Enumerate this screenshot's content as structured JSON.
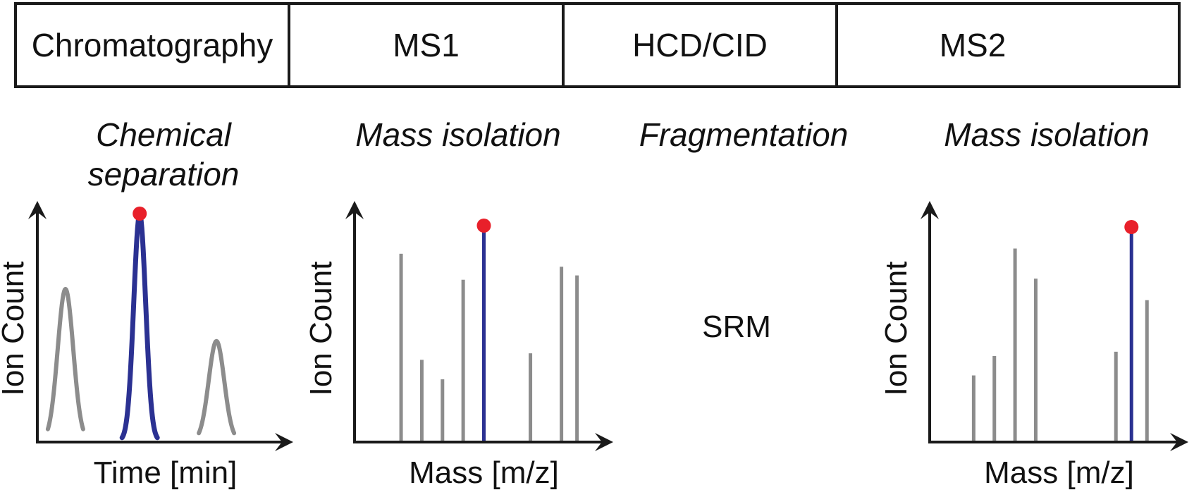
{
  "stages": [
    {
      "label": "Chromatography",
      "subtitle": [
        "Chemical",
        "separation"
      ]
    },
    {
      "label": "MS1",
      "subtitle": [
        "Mass isolation"
      ]
    },
    {
      "label": "HCD/CID",
      "subtitle": [
        "Fragmentation"
      ]
    },
    {
      "label": "MS2",
      "subtitle": [
        "Mass isolation"
      ]
    }
  ],
  "center_label": "SRM",
  "colors": {
    "selected": "#2b3192",
    "other": "#8c8c8c",
    "marker": "#e8202a",
    "axis": "#1a1a1a"
  },
  "chart_data": [
    {
      "type": "line",
      "xlabel": "Time [min]",
      "ylabel": "Ion Count",
      "series": [
        {
          "peak_x": 0.11,
          "height": 0.67,
          "selected": false
        },
        {
          "peak_x": 0.4,
          "height": 1.0,
          "selected": true
        },
        {
          "peak_x": 0.7,
          "height": 0.44,
          "selected": false
        }
      ]
    },
    {
      "type": "bar",
      "xlabel": "Mass [m/z]",
      "ylabel": "Ion Count",
      "x": [
        0.18,
        0.26,
        0.34,
        0.42,
        0.5,
        0.68,
        0.8,
        0.86
      ],
      "values": [
        0.87,
        0.38,
        0.29,
        0.75,
        1.0,
        0.41,
        0.81,
        0.77
      ],
      "selected_index": 4
    },
    {
      "type": "bar",
      "xlabel": "Mass [m/z]",
      "ylabel": "Ion Count",
      "x": [
        0.17,
        0.25,
        0.33,
        0.41,
        0.72,
        0.78,
        0.84
      ],
      "values": [
        0.31,
        0.4,
        0.9,
        0.76,
        0.42,
        1.0,
        0.66
      ],
      "selected_index": 5
    }
  ]
}
